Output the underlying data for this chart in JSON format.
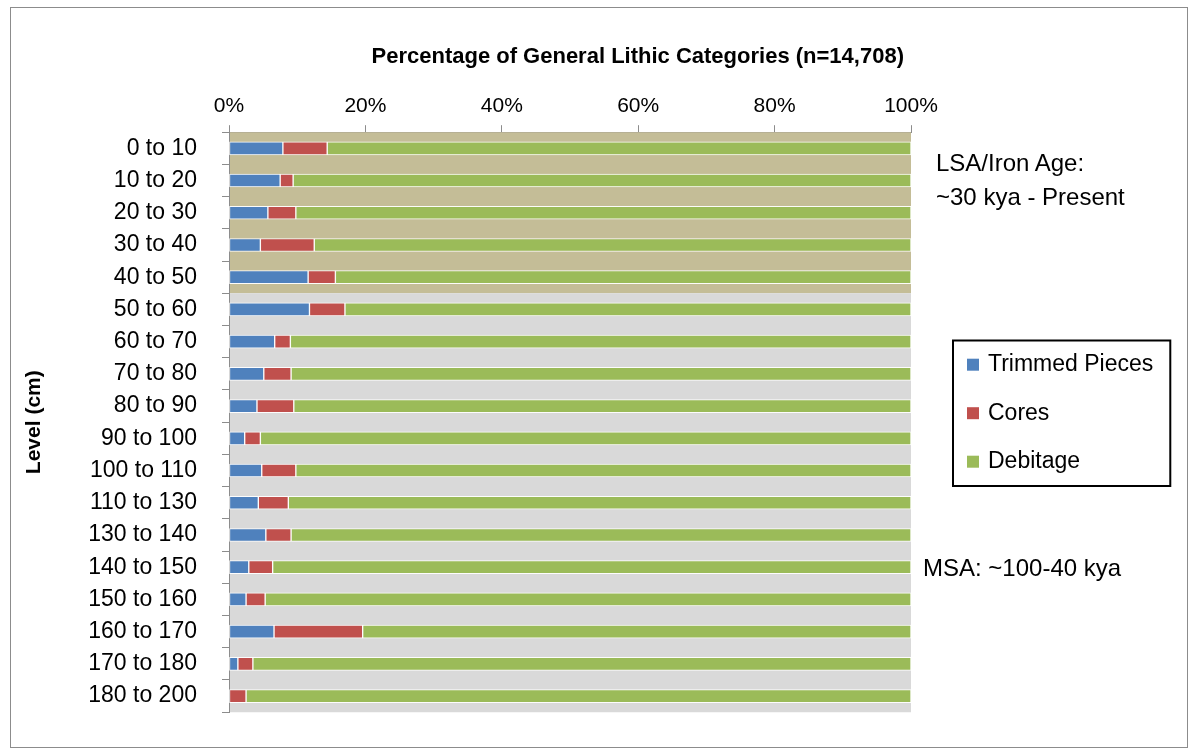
{
  "chart_data": {
    "type": "bar",
    "orientation": "horizontal",
    "stacked": true,
    "title": "Percentage of General Lithic Categories (n=14,708)",
    "ylabel": "Level (cm)",
    "categories": [
      "0 to 10",
      "10 to 20",
      "20 to 30",
      "30 to 40",
      "40 to 50",
      "50 to 60",
      "60 to 70",
      "70 to 80",
      "80 to 90",
      "90 to 100",
      "100 to 110",
      "110 to 130",
      "130 to 140",
      "140 to 150",
      "150 to 160",
      "160 to 170",
      "170 to 180",
      "180 to 200"
    ],
    "series": [
      {
        "name": "Trimmed Pieces",
        "color": "#4f81bd",
        "values": [
          7.9,
          7.5,
          5.7,
          4.6,
          11.6,
          11.8,
          6.7,
          5.1,
          4.1,
          2.3,
          4.8,
          4.3,
          5.4,
          2.9,
          2.5,
          6.6,
          1.3,
          0
        ]
      },
      {
        "name": "Cores",
        "color": "#c0504d",
        "values": [
          6.5,
          1.9,
          4.1,
          7.9,
          4.0,
          5.2,
          2.3,
          4.0,
          5.4,
          2.3,
          5.0,
          4.4,
          3.7,
          3.5,
          2.8,
          13.0,
          2.2,
          2.5
        ]
      },
      {
        "name": "Debitage",
        "color": "#9bbb59",
        "values": [
          85.6,
          90.6,
          90.2,
          87.5,
          84.4,
          83.0,
          91.0,
          90.9,
          90.5,
          95.4,
          90.2,
          91.3,
          90.9,
          93.6,
          94.7,
          80.4,
          96.5,
          97.5
        ]
      }
    ],
    "xlim": [
      0,
      100
    ],
    "xticks": [
      {
        "value": 0,
        "label": "0%"
      },
      {
        "value": 20,
        "label": "20%"
      },
      {
        "value": 40,
        "label": "40%"
      },
      {
        "value": 60,
        "label": "60%"
      },
      {
        "value": 80,
        "label": "80%"
      },
      {
        "value": 100,
        "label": "100%"
      }
    ],
    "grid": false,
    "legend": "right",
    "bands": [
      {
        "axis": "y",
        "from": "0 to 10",
        "to": "40 to 50",
        "label": "LSA/Iron Age:\n~30 kya - Present",
        "color": "#c4bd97"
      },
      {
        "axis": "y",
        "from": "50 to 60",
        "to": "180 to 200",
        "label": "MSA: ~100-40 kya",
        "color": "#d9d9d9"
      }
    ]
  }
}
